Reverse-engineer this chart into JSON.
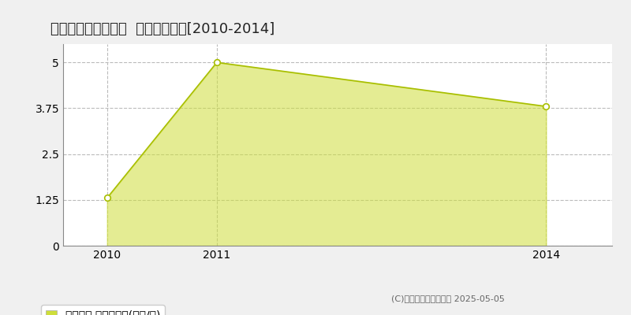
{
  "title": "幌泉郡えりも町本町  土地価格推移[2010-2014]",
  "x": [
    2010,
    2011,
    2014
  ],
  "y": [
    1.3,
    5.0,
    3.8
  ],
  "xlim": [
    2009.6,
    2014.6
  ],
  "ylim": [
    0,
    5.5
  ],
  "yticks": [
    0,
    1.25,
    2.5,
    3.75,
    5
  ],
  "ytick_labels": [
    "0",
    "1.25",
    "2.5",
    "3.75",
    "5"
  ],
  "xticks": [
    2010,
    2011,
    2014
  ],
  "fill_color": "#cede3a",
  "fill_alpha": 0.55,
  "line_color": "#a8be00",
  "marker_facecolor": "white",
  "marker_edgecolor": "#a8be00",
  "grid_color": "#bbbbbb",
  "plot_bg_color": "#ffffff",
  "fig_bg_color": "#f0f0f0",
  "legend_label": "土地価格 平均坪単価(万円/坪)",
  "copyright": "(C)土地価格ドットコム 2025-05-05",
  "title_fontsize": 13,
  "axis_fontsize": 10,
  "legend_fontsize": 10,
  "spine_color": "#888888"
}
